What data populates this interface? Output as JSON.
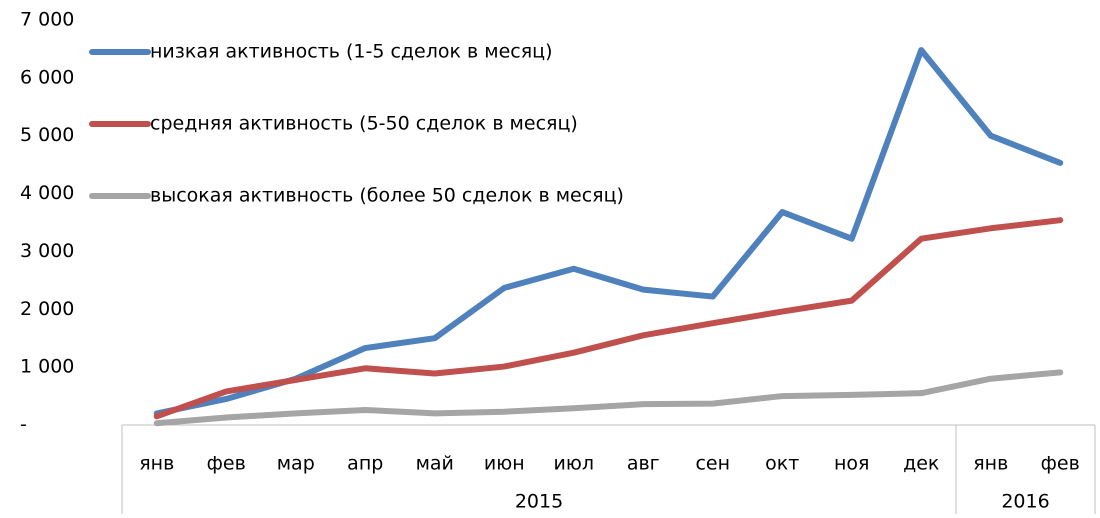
{
  "chart_data": {
    "type": "line",
    "categories": [
      "янв",
      "фев",
      "мар",
      "апр",
      "май",
      "июн",
      "июл",
      "авг",
      "сен",
      "окт",
      "ноя",
      "дек",
      "янв",
      "фев"
    ],
    "groups": [
      {
        "label": "2015",
        "count": 12
      },
      {
        "label": "2016",
        "count": 2
      }
    ],
    "series": [
      {
        "name": "низкая активность (1-5 сделок в месяц)",
        "color": "#4f81bd",
        "values": [
          200,
          450,
          800,
          1330,
          1500,
          2370,
          2700,
          2340,
          2220,
          3680,
          3220,
          6480,
          5000,
          4530
        ]
      },
      {
        "name": "средняя активность (5-50 сделок в месяц)",
        "color": "#c0504d",
        "values": [
          150,
          580,
          780,
          980,
          890,
          1010,
          1250,
          1550,
          1760,
          1960,
          2150,
          3220,
          3400,
          3540
        ]
      },
      {
        "name": "высокая активность (более 50 сделок в месяц)",
        "color": "#a5a5a5",
        "values": [
          30,
          130,
          200,
          260,
          200,
          230,
          290,
          360,
          370,
          500,
          520,
          550,
          800,
          910
        ]
      }
    ],
    "ylim": [
      0,
      7000
    ],
    "yticks": [
      {
        "value": 0,
        "label": "-"
      },
      {
        "value": 1000,
        "label": "1 000"
      },
      {
        "value": 2000,
        "label": "2 000"
      },
      {
        "value": 3000,
        "label": "3 000"
      },
      {
        "value": 4000,
        "label": "4 000"
      },
      {
        "value": 5000,
        "label": "5 000"
      },
      {
        "value": 6000,
        "label": "6 000"
      },
      {
        "value": 7000,
        "label": "7 000"
      }
    ],
    "grid": false,
    "legend": "upper left"
  }
}
